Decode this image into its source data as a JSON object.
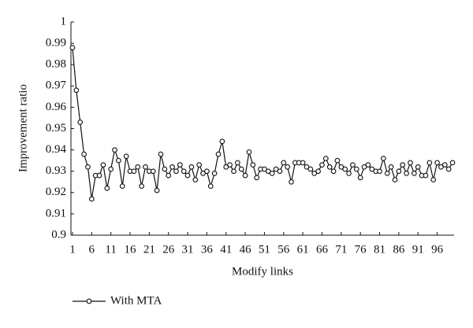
{
  "chart_data": {
    "type": "line",
    "x_label": "Modify links",
    "y_label": "Improvement ratio",
    "x": [
      1,
      2,
      3,
      4,
      5,
      6,
      7,
      8,
      9,
      10,
      11,
      12,
      13,
      14,
      15,
      16,
      17,
      18,
      19,
      20,
      21,
      22,
      23,
      24,
      25,
      26,
      27,
      28,
      29,
      30,
      31,
      32,
      33,
      34,
      35,
      36,
      37,
      38,
      39,
      40,
      41,
      42,
      43,
      44,
      45,
      46,
      47,
      48,
      49,
      50,
      51,
      52,
      53,
      54,
      55,
      56,
      57,
      58,
      59,
      60,
      61,
      62,
      63,
      64,
      65,
      66,
      67,
      68,
      69,
      70,
      71,
      72,
      73,
      74,
      75,
      76,
      77,
      78,
      79,
      80,
      81,
      82,
      83,
      84,
      85,
      86,
      87,
      88,
      89,
      90,
      91,
      92,
      93,
      94,
      95,
      96,
      97,
      98,
      99,
      100
    ],
    "series": [
      {
        "name": "With MTA",
        "color": "#111111",
        "values": [
          0.988,
          0.968,
          0.953,
          0.938,
          0.932,
          0.917,
          0.928,
          0.928,
          0.933,
          0.922,
          0.931,
          0.94,
          0.935,
          0.923,
          0.937,
          0.93,
          0.93,
          0.932,
          0.923,
          0.932,
          0.93,
          0.93,
          0.921,
          0.938,
          0.931,
          0.928,
          0.932,
          0.93,
          0.933,
          0.93,
          0.928,
          0.932,
          0.926,
          0.933,
          0.929,
          0.93,
          0.923,
          0.929,
          0.938,
          0.944,
          0.932,
          0.933,
          0.93,
          0.934,
          0.931,
          0.928,
          0.939,
          0.933,
          0.927,
          0.931,
          0.931,
          0.93,
          0.929,
          0.931,
          0.93,
          0.934,
          0.932,
          0.925,
          0.934,
          0.934,
          0.934,
          0.932,
          0.931,
          0.929,
          0.93,
          0.933,
          0.936,
          0.932,
          0.93,
          0.935,
          0.932,
          0.931,
          0.929,
          0.933,
          0.931,
          0.927,
          0.932,
          0.933,
          0.931,
          0.93,
          0.93,
          0.936,
          0.929,
          0.932,
          0.926,
          0.93,
          0.933,
          0.929,
          0.934,
          0.929,
          0.932,
          0.928,
          0.928,
          0.934,
          0.926,
          0.934,
          0.932,
          0.933,
          0.931,
          0.934
        ]
      }
    ],
    "xlim": [
      0.6,
      100.4
    ],
    "xticks": [
      1,
      6,
      11,
      16,
      21,
      26,
      31,
      36,
      41,
      46,
      51,
      56,
      61,
      66,
      71,
      76,
      81,
      86,
      91,
      96
    ],
    "ylim": [
      0.9,
      1
    ],
    "yticks": [
      0.9,
      0.91,
      0.92,
      0.93,
      0.94,
      0.95,
      0.96,
      0.97,
      0.98,
      0.99,
      1
    ],
    "grid": false,
    "legend": "bottom"
  }
}
